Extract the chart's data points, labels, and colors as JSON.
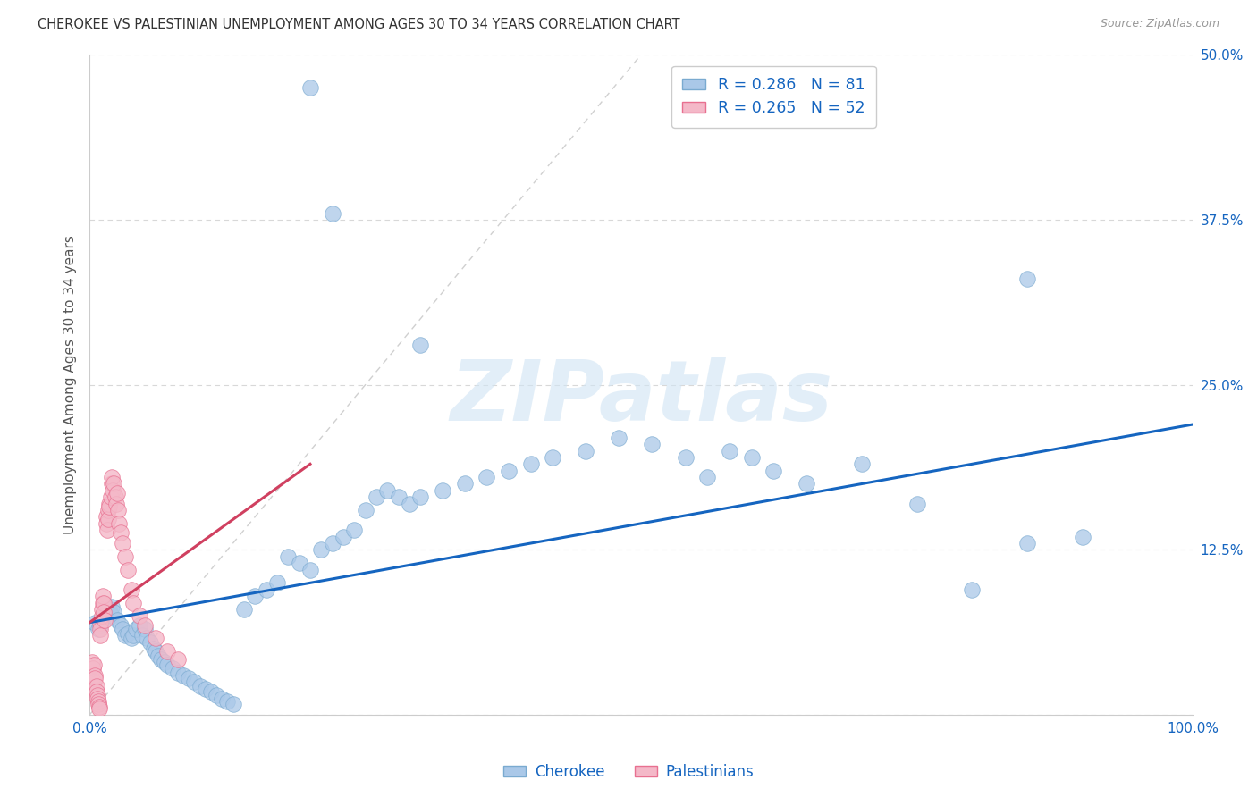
{
  "title": "CHEROKEE VS PALESTINIAN UNEMPLOYMENT AMONG AGES 30 TO 34 YEARS CORRELATION CHART",
  "source": "Source: ZipAtlas.com",
  "ylabel": "Unemployment Among Ages 30 to 34 years",
  "xlim": [
    0,
    1.0
  ],
  "ylim": [
    0,
    0.5
  ],
  "cherokee_color": "#aac8e8",
  "cherokee_edge": "#7aaad0",
  "palestinian_color": "#f4b8c8",
  "palestinian_edge": "#e87090",
  "line_cherokee_color": "#1565c0",
  "line_palestinian_color": "#d04060",
  "r_cherokee": 0.286,
  "n_cherokee": 81,
  "r_palestinian": 0.265,
  "n_palestinian": 52,
  "label_color": "#1565c0",
  "watermark": "ZIPatlas",
  "cherokee_x": [
    0.005,
    0.008,
    0.01,
    0.012,
    0.015,
    0.018,
    0.02,
    0.02,
    0.022,
    0.025,
    0.028,
    0.03,
    0.032,
    0.035,
    0.038,
    0.04,
    0.042,
    0.045,
    0.048,
    0.05,
    0.052,
    0.055,
    0.058,
    0.06,
    0.062,
    0.065,
    0.068,
    0.07,
    0.075,
    0.08,
    0.085,
    0.09,
    0.095,
    0.1,
    0.105,
    0.11,
    0.115,
    0.12,
    0.125,
    0.13,
    0.14,
    0.15,
    0.16,
    0.17,
    0.18,
    0.19,
    0.2,
    0.21,
    0.22,
    0.23,
    0.24,
    0.25,
    0.26,
    0.27,
    0.28,
    0.29,
    0.3,
    0.32,
    0.34,
    0.36,
    0.38,
    0.4,
    0.42,
    0.45,
    0.48,
    0.51,
    0.54,
    0.56,
    0.58,
    0.6,
    0.62,
    0.65,
    0.7,
    0.75,
    0.8,
    0.85,
    0.9,
    0.2,
    0.22,
    0.3,
    0.85
  ],
  "cherokee_y": [
    0.07,
    0.065,
    0.068,
    0.072,
    0.075,
    0.08,
    0.075,
    0.082,
    0.078,
    0.072,
    0.068,
    0.065,
    0.06,
    0.062,
    0.058,
    0.06,
    0.065,
    0.068,
    0.06,
    0.065,
    0.058,
    0.055,
    0.05,
    0.048,
    0.045,
    0.042,
    0.04,
    0.038,
    0.035,
    0.032,
    0.03,
    0.028,
    0.025,
    0.022,
    0.02,
    0.018,
    0.015,
    0.012,
    0.01,
    0.008,
    0.08,
    0.09,
    0.095,
    0.1,
    0.12,
    0.115,
    0.11,
    0.125,
    0.13,
    0.135,
    0.14,
    0.155,
    0.165,
    0.17,
    0.165,
    0.16,
    0.165,
    0.17,
    0.175,
    0.18,
    0.185,
    0.19,
    0.195,
    0.2,
    0.21,
    0.205,
    0.195,
    0.18,
    0.2,
    0.195,
    0.185,
    0.175,
    0.19,
    0.16,
    0.095,
    0.13,
    0.135,
    0.475,
    0.38,
    0.28,
    0.33
  ],
  "palestinian_x": [
    0.002,
    0.003,
    0.004,
    0.004,
    0.005,
    0.005,
    0.006,
    0.006,
    0.007,
    0.007,
    0.008,
    0.008,
    0.009,
    0.009,
    0.01,
    0.01,
    0.01,
    0.011,
    0.011,
    0.012,
    0.012,
    0.013,
    0.013,
    0.014,
    0.015,
    0.015,
    0.016,
    0.017,
    0.017,
    0.018,
    0.018,
    0.019,
    0.02,
    0.02,
    0.021,
    0.022,
    0.023,
    0.024,
    0.025,
    0.026,
    0.027,
    0.028,
    0.03,
    0.032,
    0.035,
    0.038,
    0.04,
    0.045,
    0.05,
    0.06,
    0.07,
    0.08
  ],
  "palestinian_y": [
    0.04,
    0.035,
    0.038,
    0.025,
    0.03,
    0.028,
    0.022,
    0.018,
    0.015,
    0.012,
    0.01,
    0.008,
    0.006,
    0.005,
    0.07,
    0.065,
    0.06,
    0.075,
    0.08,
    0.085,
    0.09,
    0.085,
    0.078,
    0.072,
    0.15,
    0.145,
    0.14,
    0.155,
    0.148,
    0.16,
    0.158,
    0.165,
    0.175,
    0.18,
    0.17,
    0.175,
    0.165,
    0.16,
    0.168,
    0.155,
    0.145,
    0.138,
    0.13,
    0.12,
    0.11,
    0.095,
    0.085,
    0.075,
    0.068,
    0.058,
    0.048,
    0.042
  ]
}
